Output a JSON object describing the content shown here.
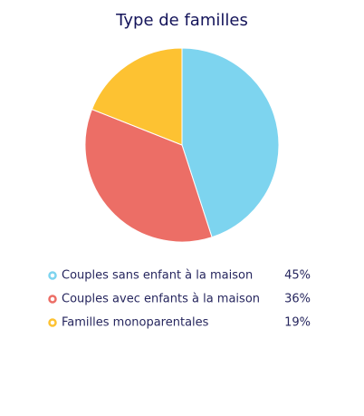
{
  "chart_data": {
    "type": "pie",
    "title": "Type de familles",
    "categories": [
      "Couples sans enfant à la maison",
      "Couples avec enfants à la maison",
      "Familles monoparentales"
    ],
    "values": [
      45,
      36,
      19
    ],
    "value_labels": [
      "45%",
      "36%",
      "19%"
    ],
    "colors": [
      "#7dd4ef",
      "#ec6e66",
      "#fdc232"
    ]
  }
}
